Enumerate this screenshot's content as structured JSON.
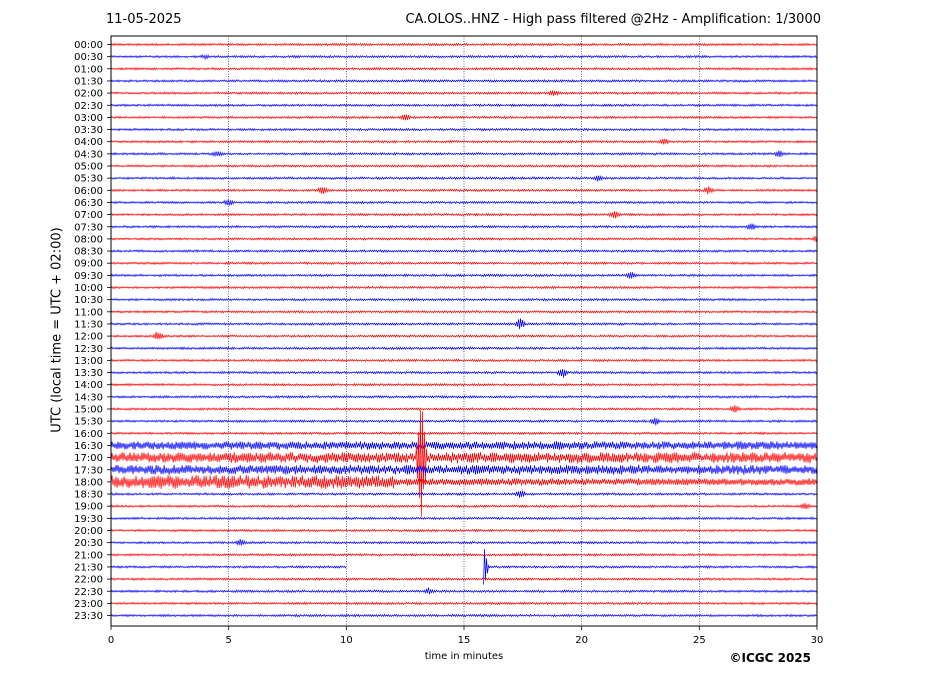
{
  "header": {
    "date": "11-05-2025",
    "title": "CA.OLOS..HNZ - High pass filtered @2Hz - Amplification: 1/3000"
  },
  "footer": {
    "copyright": "©ICGC 2025"
  },
  "colors": {
    "red_trace": "#ff0000",
    "blue_trace": "#0000ff",
    "axis": "#000000",
    "grid": "#000080"
  },
  "chart_data": {
    "type": "line",
    "title": "CA.OLOS..HNZ - High pass filtered @2Hz - Amplification: 1/3000",
    "xlabel": "time in minutes",
    "ylabel": "UTC (local time = UTC + 02:00)",
    "xlim": [
      0,
      30
    ],
    "x_ticks": [
      0,
      5,
      10,
      15,
      20,
      25,
      30
    ],
    "x_tick_labels": [
      "0",
      "5",
      "10",
      "15",
      "20",
      "25",
      "30"
    ],
    "grid": "vertical dotted at 5, 10, 15, 20, 25",
    "row_colors": "alternating red (even rows) and blue (odd rows)",
    "rows": [
      "00:00",
      "00:30",
      "01:00",
      "01:30",
      "02:00",
      "02:30",
      "03:00",
      "03:30",
      "04:00",
      "04:30",
      "05:00",
      "05:30",
      "06:00",
      "06:30",
      "07:00",
      "07:30",
      "08:00",
      "08:30",
      "09:00",
      "09:30",
      "10:00",
      "10:30",
      "11:00",
      "11:30",
      "12:00",
      "12:30",
      "13:00",
      "13:30",
      "14:00",
      "14:30",
      "15:00",
      "15:30",
      "16:00",
      "16:30",
      "17:00",
      "17:30",
      "18:00",
      "18:30",
      "19:00",
      "19:30",
      "20:00",
      "20:30",
      "21:00",
      "21:30",
      "22:00",
      "22:30",
      "23:00",
      "23:30"
    ],
    "events": [
      {
        "row": "00:30",
        "t": 4.0,
        "amp": 0.2
      },
      {
        "row": "02:00",
        "t": 18.8,
        "amp": 0.4
      },
      {
        "row": "03:00",
        "t": 12.5,
        "amp": 0.4
      },
      {
        "row": "04:00",
        "t": 23.5,
        "amp": 0.4
      },
      {
        "row": "04:30",
        "t": 4.5,
        "amp": 0.4
      },
      {
        "row": "04:30",
        "t": 28.4,
        "amp": 0.4
      },
      {
        "row": "05:30",
        "t": 20.7,
        "amp": 0.4
      },
      {
        "row": "06:00",
        "t": 9.0,
        "amp": 0.5
      },
      {
        "row": "06:00",
        "t": 25.4,
        "amp": 0.5
      },
      {
        "row": "06:30",
        "t": 5.0,
        "amp": 0.4
      },
      {
        "row": "07:00",
        "t": 21.4,
        "amp": 0.5
      },
      {
        "row": "07:30",
        "t": 27.2,
        "amp": 0.5
      },
      {
        "row": "08:00",
        "t": 30.0,
        "amp": 0.5
      },
      {
        "row": "09:30",
        "t": 22.1,
        "amp": 0.5
      },
      {
        "row": "11:30",
        "t": 17.4,
        "amp": 0.7
      },
      {
        "row": "12:00",
        "t": 2.0,
        "amp": 0.6
      },
      {
        "row": "13:30",
        "t": 19.2,
        "amp": 0.6
      },
      {
        "row": "15:00",
        "t": 26.5,
        "amp": 0.5
      },
      {
        "row": "15:30",
        "t": 23.1,
        "amp": 0.5
      },
      {
        "row": "16:30",
        "t": 26.8,
        "amp": 0.4
      },
      {
        "row": "17:00",
        "t": 13.2,
        "amp": 8.5
      },
      {
        "row": "18:30",
        "t": 17.4,
        "amp": 0.5
      },
      {
        "row": "19:00",
        "t": 29.5,
        "amp": 0.4
      },
      {
        "row": "20:30",
        "t": 5.5,
        "amp": 0.4
      },
      {
        "row": "21:30",
        "t": 15.8,
        "amp": 3.5
      },
      {
        "row": "22:30",
        "t": 13.5,
        "amp": 0.4
      }
    ],
    "noisy_segments": [
      {
        "row": "16:30",
        "start": 0.0,
        "end": 30.0,
        "level": 0.25
      },
      {
        "row": "17:00",
        "start": 0.0,
        "end": 30.0,
        "level": 0.35
      },
      {
        "row": "17:30",
        "start": 0.0,
        "end": 30.0,
        "level": 0.3
      },
      {
        "row": "18:00",
        "start": 0.0,
        "end": 12.0,
        "level": 0.45
      },
      {
        "row": "18:00",
        "start": 12.0,
        "end": 30.0,
        "level": 0.2
      }
    ],
    "gap": {
      "row": "21:30",
      "start": 10.0,
      "end": 15.8
    }
  }
}
